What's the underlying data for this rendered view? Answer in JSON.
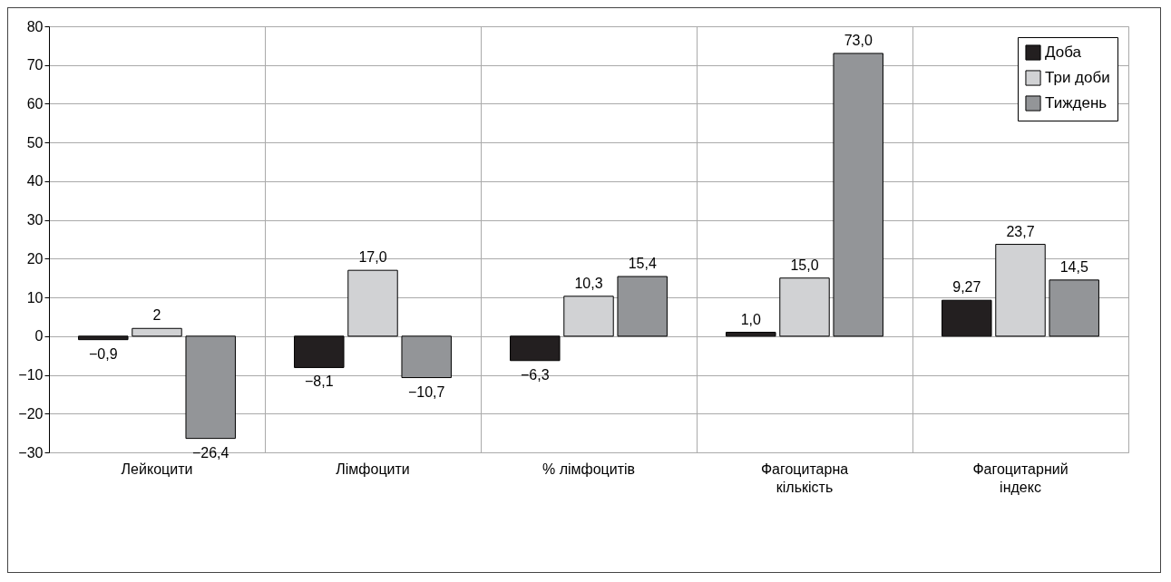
{
  "chart_data": {
    "type": "bar",
    "categories": [
      "Лейкоцити",
      "Лімфоцити",
      "% лімфоцитів",
      "Фагоцитарна\nкількість",
      "Фагоцитарний\nіндекс"
    ],
    "series": [
      {
        "name": "Доба",
        "color": "#231f20",
        "values": [
          -0.9,
          -8.1,
          -6.3,
          1.0,
          9.27
        ],
        "value_labels": [
          "−0,9",
          "−8,1",
          "−6,3",
          "1,0",
          "9,27"
        ]
      },
      {
        "name": "Три доби",
        "color": "#d1d2d4",
        "values": [
          2,
          17.0,
          10.3,
          15.0,
          23.7
        ],
        "value_labels": [
          "2",
          "17,0",
          "10,3",
          "15,0",
          "23,7"
        ]
      },
      {
        "name": "Тиждень",
        "color": "#939598",
        "values": [
          -26.4,
          -10.7,
          15.4,
          73.0,
          14.5
        ],
        "value_labels": [
          "−26,4",
          "−10,7",
          "15,4",
          "73,0",
          "14,5"
        ]
      }
    ],
    "ylim": [
      -30,
      80
    ],
    "yticks": [
      -30,
      -20,
      -10,
      0,
      10,
      20,
      30,
      40,
      50,
      60,
      70,
      80
    ],
    "grid": true,
    "legend": "top right"
  }
}
